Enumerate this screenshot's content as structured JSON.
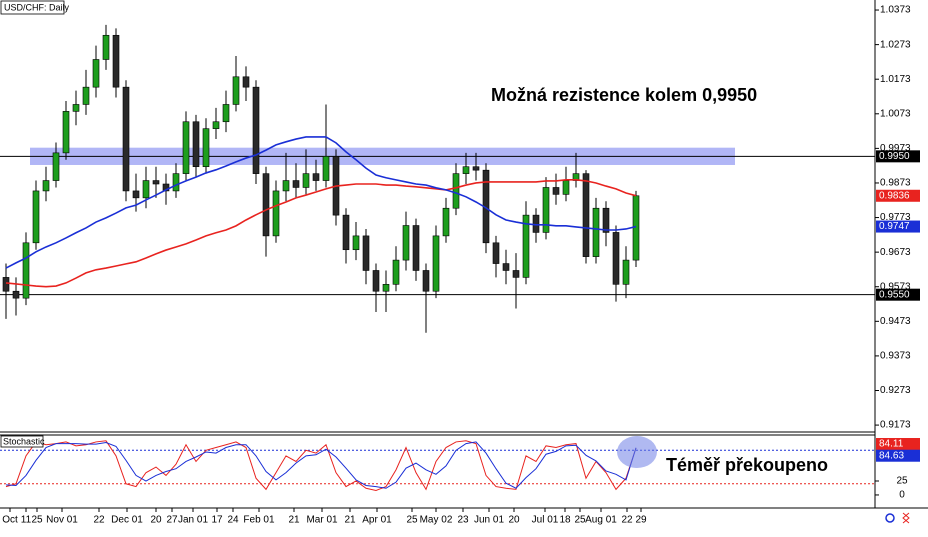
{
  "chart_data": [
    {
      "type": "candlestick",
      "title": "USD/CHF: Daily",
      "annotation": "Možná rezistence kolem 0,9950",
      "up_color": "#1e9e1e",
      "down_color": "#2a2a2a",
      "open": [
        0.96,
        0.956,
        0.954,
        0.97,
        0.985,
        0.988,
        0.996,
        1.008,
        1.01,
        1.015,
        1.023,
        1.03,
        1.015,
        0.985,
        0.983,
        0.988,
        0.987,
        0.985,
        0.99,
        1.005,
        0.992,
        1.003,
        1.005,
        1.01,
        1.018,
        1.015,
        0.99,
        0.972,
        0.985,
        0.988,
        0.986,
        0.99,
        0.988,
        0.995,
        0.978,
        0.968,
        0.972,
        0.962,
        0.956,
        0.958,
        0.965,
        0.975,
        0.962,
        0.956,
        0.972,
        0.98,
        0.99,
        0.992,
        0.991,
        0.97,
        0.964,
        0.962,
        0.96,
        0.978,
        0.973,
        0.986,
        0.984,
        0.988,
        0.99,
        0.966,
        0.98,
        0.973,
        0.958,
        0.965
      ],
      "high": [
        0.964,
        0.96,
        0.973,
        0.988,
        0.992,
        0.999,
        1.011,
        1.014,
        1.02,
        1.027,
        1.033,
        1.032,
        1.017,
        0.99,
        0.992,
        0.992,
        0.99,
        0.993,
        1.008,
        1.007,
        1.006,
        1.009,
        1.014,
        1.024,
        1.021,
        1.017,
        0.992,
        0.988,
        0.996,
        0.993,
        0.997,
        0.994,
        1.01,
        0.997,
        0.98,
        0.976,
        0.974,
        0.964,
        0.962,
        0.969,
        0.979,
        0.977,
        0.964,
        0.975,
        0.983,
        0.993,
        0.996,
        0.996,
        0.993,
        0.972,
        0.968,
        0.967,
        0.982,
        0.98,
        0.989,
        0.99,
        0.992,
        0.996,
        0.991,
        0.983,
        0.982,
        0.975,
        0.969,
        0.985
      ],
      "low": [
        0.948,
        0.949,
        0.952,
        0.968,
        0.982,
        0.986,
        0.994,
        1.004,
        1.007,
        1.012,
        1.02,
        1.012,
        0.982,
        0.979,
        0.98,
        0.983,
        0.981,
        0.983,
        0.988,
        0.989,
        0.99,
        1.0,
        1.002,
        1.008,
        1.011,
        0.987,
        0.966,
        0.97,
        0.982,
        0.983,
        0.984,
        0.985,
        0.986,
        0.975,
        0.964,
        0.965,
        0.958,
        0.95,
        0.95,
        0.956,
        0.962,
        0.959,
        0.944,
        0.954,
        0.97,
        0.978,
        0.987,
        0.988,
        0.967,
        0.96,
        0.958,
        0.951,
        0.958,
        0.97,
        0.971,
        0.981,
        0.982,
        0.986,
        0.964,
        0.964,
        0.969,
        0.953,
        0.954,
        0.963
      ],
      "close": [
        0.956,
        0.954,
        0.97,
        0.985,
        0.988,
        0.996,
        1.008,
        1.01,
        1.015,
        1.023,
        1.03,
        1.015,
        0.985,
        0.983,
        0.988,
        0.987,
        0.985,
        0.99,
        1.005,
        0.992,
        1.003,
        1.005,
        1.01,
        1.018,
        1.015,
        0.99,
        0.972,
        0.985,
        0.988,
        0.986,
        0.99,
        0.988,
        0.995,
        0.978,
        0.968,
        0.972,
        0.962,
        0.956,
        0.958,
        0.965,
        0.975,
        0.962,
        0.956,
        0.972,
        0.98,
        0.99,
        0.992,
        0.991,
        0.97,
        0.964,
        0.962,
        0.96,
        0.978,
        0.973,
        0.986,
        0.984,
        0.988,
        0.99,
        0.966,
        0.98,
        0.973,
        0.958,
        0.965,
        0.9836
      ],
      "moving_averages": [
        {
          "color": "#e8231f",
          "values": [
            0.9584,
            0.9581,
            0.9578,
            0.9575,
            0.9573,
            0.9575,
            0.9584,
            0.9598,
            0.9613,
            0.9622,
            0.9627,
            0.9633,
            0.9639,
            0.9645,
            0.9656,
            0.9668,
            0.9679,
            0.9688,
            0.9697,
            0.9708,
            0.972,
            0.9729,
            0.9737,
            0.9749,
            0.9766,
            0.9781,
            0.9795,
            0.9807,
            0.9818,
            0.983,
            0.9838,
            0.9847,
            0.9856,
            0.9864,
            0.9867,
            0.987,
            0.987,
            0.987,
            0.9867,
            0.9867,
            0.9864,
            0.9862,
            0.9859,
            0.9856,
            0.9853,
            0.9859,
            0.9867,
            0.9873,
            0.9876,
            0.9876,
            0.9876,
            0.9876,
            0.9876,
            0.9876,
            0.9879,
            0.9879,
            0.9882,
            0.9882,
            0.9879,
            0.9873,
            0.9864,
            0.9856,
            0.9844,
            0.9836
          ]
        },
        {
          "color": "#1a2fd6",
          "values": [
            0.9627,
            0.9642,
            0.9656,
            0.9674,
            0.9688,
            0.97,
            0.9714,
            0.9729,
            0.9743,
            0.976,
            0.9772,
            0.9786,
            0.9801,
            0.9809,
            0.9824,
            0.9838,
            0.9853,
            0.9867,
            0.9879,
            0.989,
            0.9902,
            0.9911,
            0.9922,
            0.9934,
            0.9945,
            0.9954,
            0.9968,
            0.9983,
            0.9992,
            1.0,
            1.0006,
            1.0006,
            1.0006,
            0.9989,
            0.9963,
            0.994,
            0.9916,
            0.9896,
            0.9888,
            0.9882,
            0.9876,
            0.987,
            0.9867,
            0.9859,
            0.9853,
            0.9844,
            0.9833,
            0.9818,
            0.9801,
            0.9781,
            0.9766,
            0.976,
            0.9755,
            0.9752,
            0.9752,
            0.9749,
            0.9749,
            0.9746,
            0.9743,
            0.974,
            0.9737,
            0.9737,
            0.974,
            0.9747
          ]
        }
      ],
      "zone": [
        0.9925,
        0.9975
      ],
      "hlines": [
        {
          "value": 0.995,
          "label": "0.9950"
        },
        {
          "value": 0.955,
          "label": "0.9550"
        }
      ],
      "ylim": [
        0.9153,
        1.0402
      ],
      "yticks": [
        1.0373,
        1.0273,
        1.0173,
        1.0073,
        0.9973,
        0.9873,
        0.9773,
        0.9673,
        0.9573,
        0.9473,
        0.9373,
        0.9273,
        0.9173
      ],
      "x_labels": [
        "Oct",
        "11",
        "25",
        "Nov 01",
        "22",
        "Dec 01",
        "20",
        "27",
        "Jan 01",
        "17",
        "24",
        "Feb 01",
        "21",
        "Mar 01",
        "21",
        "Apr 01",
        "25",
        "May 02",
        "23",
        "Jun 01",
        "20",
        "Jul 01",
        "18",
        "25",
        "Aug 01",
        "22",
        "29"
      ]
    },
    {
      "type": "line",
      "title": "Stochastic",
      "annotation": "Téměř překoupeno",
      "series": [
        {
          "color": "#e8231f",
          "values": [
            15,
            20,
            70,
            95,
            90,
            92,
            95,
            88,
            90,
            95,
            97,
            70,
            20,
            15,
            40,
            50,
            35,
            55,
            90,
            60,
            80,
            85,
            90,
            95,
            85,
            30,
            10,
            40,
            70,
            60,
            80,
            75,
            90,
            40,
            15,
            25,
            12,
            8,
            15,
            45,
            85,
            40,
            10,
            60,
            85,
            95,
            97,
            92,
            35,
            15,
            12,
            10,
            70,
            60,
            88,
            85,
            90,
            92,
            30,
            60,
            40,
            10,
            30,
            84.11
          ]
        },
        {
          "color": "#1a2fd6",
          "values": [
            18,
            17,
            35,
            62,
            85,
            92,
            92,
            92,
            91,
            91,
            94,
            87,
            62,
            35,
            25,
            35,
            42,
            47,
            60,
            68,
            77,
            75,
            85,
            90,
            90,
            70,
            42,
            27,
            40,
            57,
            70,
            72,
            82,
            68,
            48,
            27,
            17,
            15,
            12,
            23,
            48,
            57,
            45,
            37,
            52,
            80,
            92,
            95,
            75,
            47,
            21,
            12,
            31,
            47,
            73,
            78,
            88,
            89,
            71,
            61,
            43,
            37,
            27,
            84.63
          ]
        }
      ],
      "levels": [
        {
          "value": 80,
          "color": "#1a2fd6"
        },
        {
          "value": 20,
          "color": "#e8231f"
        }
      ],
      "ylim": [
        -18,
        111
      ],
      "yticks": [
        25,
        0
      ]
    }
  ]
}
